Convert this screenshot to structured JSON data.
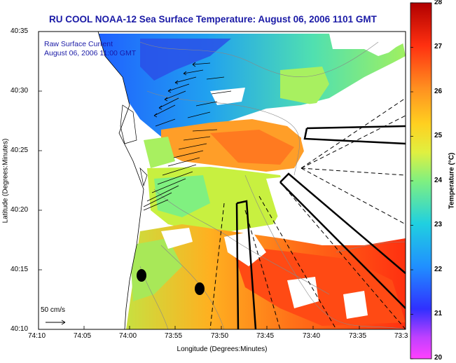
{
  "title": "RU COOL  NOAA-12  Sea Surface Temperature:  August 06, 2006 1101 GMT",
  "legend": {
    "line1": "Raw Surface Current",
    "line2": "August 06, 2006 11:00 GMT",
    "scale_label": "50 cm/s"
  },
  "axes": {
    "ylabel": "Latitude (Degrees:Minutes)",
    "xlabel": "Longitude (Degrees:Minutes)",
    "yticks": [
      "40:35",
      "40:30",
      "40:25",
      "40:20",
      "40:15",
      "40:10"
    ],
    "xticks": [
      "74:10",
      "74:05",
      "74:00",
      "73:55",
      "73:50",
      "73:45",
      "73:40",
      "73:35",
      "73:3"
    ]
  },
  "colorbar": {
    "label": "Temperature (°C)",
    "ticks": [
      "28",
      "27",
      "26",
      "25",
      "24",
      "23",
      "22",
      "21",
      "20"
    ],
    "min": 20,
    "max": 28
  },
  "colors": {
    "title_blue": "#1a1aa6",
    "land": "#ffffff",
    "outline": "#000000"
  }
}
